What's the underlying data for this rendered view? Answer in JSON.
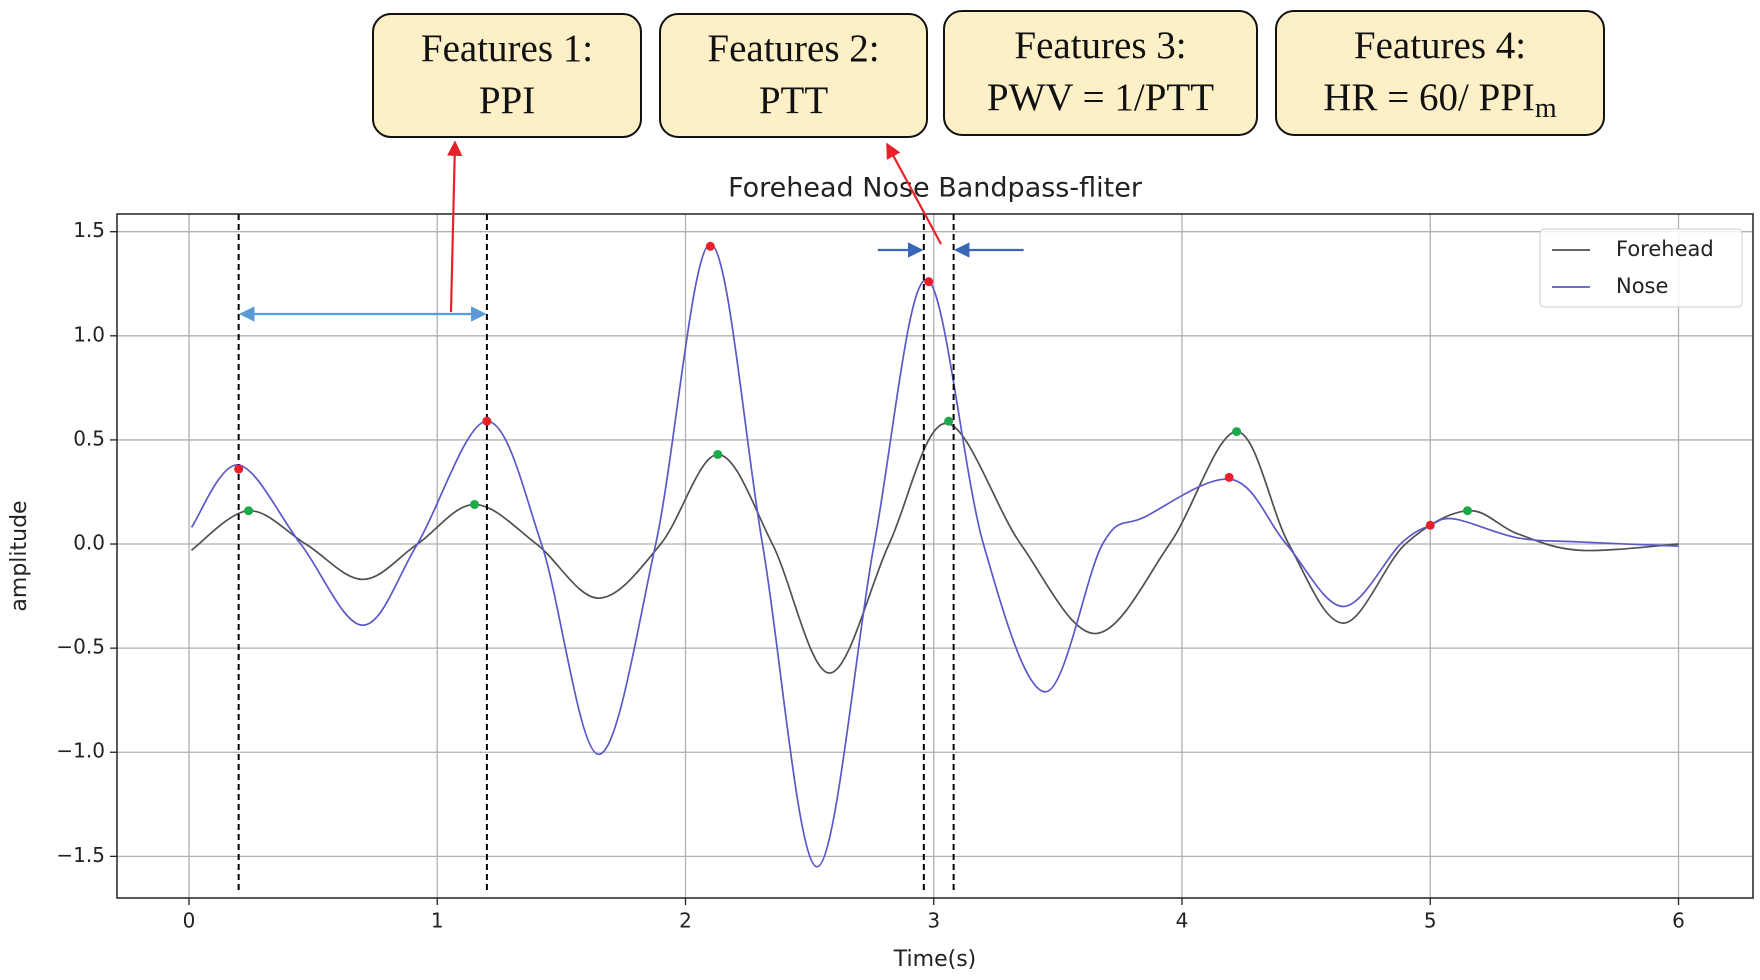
{
  "chart_data": {
    "type": "line",
    "title": "Forehead Nose Bandpass-fliter",
    "xlabel": "Time(s)",
    "ylabel": "amplitude",
    "xlim": [
      -0.29,
      6.3
    ],
    "xticks": [
      0,
      1,
      2,
      3,
      4,
      5,
      6
    ],
    "ylim": [
      -1.7,
      1.585
    ],
    "yticks": [
      {
        "value": -1.5,
        "label": "−1.5"
      },
      {
        "value": -1,
        "label": "−1.0"
      },
      {
        "value": -0.5,
        "label": "−0.5"
      },
      {
        "value": 0,
        "label": "0.0"
      },
      0.5,
      {
        "value": 1,
        "label": "1.0"
      },
      1.5
    ],
    "grid": true,
    "legend": "upper right",
    "series": [
      {
        "name": "Forehead",
        "color": "#505050",
        "x": [
          0.01,
          0.24,
          0.47,
          0.7,
          0.92,
          1.15,
          1.4,
          1.65,
          1.9,
          2.13,
          2.35,
          2.58,
          2.82,
          3.05,
          3.35,
          3.65,
          3.95,
          4.22,
          4.43,
          4.65,
          4.9,
          5.15,
          5.35,
          5.6,
          6.0
        ],
        "values": [
          -0.03,
          0.16,
          0,
          -0.17,
          0,
          0.19,
          0,
          -0.26,
          0,
          0.43,
          0,
          -0.62,
          0,
          0.58,
          0,
          -0.43,
          0,
          0.54,
          0,
          -0.38,
          0,
          0.16,
          0.05,
          -0.03,
          0.0
        ]
      },
      {
        "name": "Nose",
        "color": "#5b58c9",
        "x": [
          0.01,
          0.2,
          0.45,
          0.7,
          0.92,
          1.2,
          1.42,
          1.65,
          1.88,
          2.1,
          2.31,
          2.53,
          2.76,
          2.97,
          3.2,
          3.45,
          3.68,
          3.85,
          4.2,
          4.42,
          4.65,
          4.88,
          5.0,
          5.1,
          5.35,
          5.6,
          6.0
        ],
        "values": [
          0.08,
          0.38,
          0,
          -0.39,
          0,
          0.59,
          0,
          -1.01,
          0,
          1.44,
          0,
          -1.55,
          0,
          1.27,
          0,
          -0.71,
          0,
          0.13,
          0.31,
          0,
          -0.3,
          0,
          0.09,
          0.12,
          0.03,
          0.01,
          -0.01
        ]
      }
    ],
    "markers": [
      {
        "color": "#e8202a",
        "x": [
          0.2,
          1.2,
          2.1,
          2.98,
          4.19,
          5.0
        ],
        "values": [
          0.36,
          0.59,
          1.43,
          1.26,
          0.32,
          0.09
        ]
      },
      {
        "color": "#1aaa4a",
        "x": [
          0.24,
          1.15,
          2.13,
          3.06,
          4.22,
          5.15
        ],
        "values": [
          0.16,
          0.19,
          0.43,
          0.59,
          0.54,
          0.16
        ]
      }
    ],
    "vlines": [
      0.2,
      1.2,
      2.96,
      3.08
    ]
  },
  "feature_boxes": [
    {
      "title": "Features 1:",
      "text": "PPI"
    },
    {
      "title": "Features 2:",
      "text": "PTT"
    },
    {
      "title": "Features 3:",
      "text": "PWV = 1/PTT"
    },
    {
      "title": "Features 4:",
      "text": "HR = 60/ PPI",
      "subscript": "m"
    }
  ]
}
